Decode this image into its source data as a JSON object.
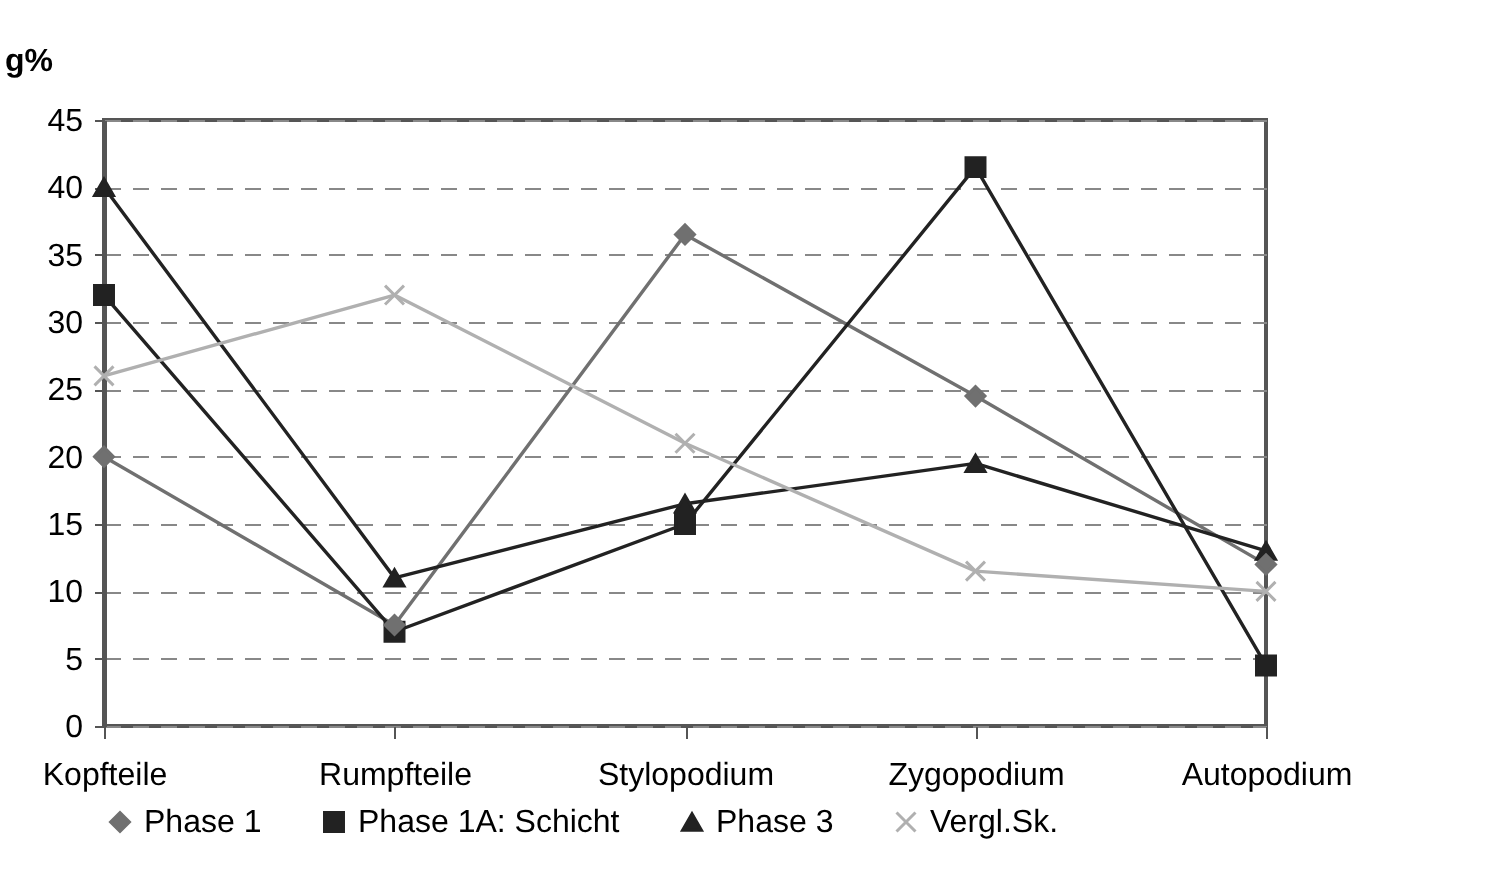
{
  "chart_data": {
    "type": "line",
    "ylabel": "g%",
    "categories": [
      "Kopfteile",
      "Rumpfteile",
      "Stylopodium",
      "Zygopodium",
      "Autopodium"
    ],
    "series": [
      {
        "name": "Phase 1",
        "color": "#707070",
        "marker": "diamond",
        "values": [
          20,
          7.5,
          36.5,
          24.5,
          12
        ]
      },
      {
        "name": "Phase 1A: Schicht",
        "color": "#222222",
        "marker": "square",
        "values": [
          32,
          7,
          15,
          41.5,
          4.5
        ]
      },
      {
        "name": "Phase 3",
        "color": "#222222",
        "marker": "triangle",
        "values": [
          40,
          11,
          16.5,
          19.5,
          13
        ]
      },
      {
        "name": "Vergl.Sk.",
        "color": "#b0b0b0",
        "marker": "cross",
        "values": [
          26,
          32,
          21,
          11.5,
          10
        ]
      }
    ],
    "ylim": [
      0,
      45
    ],
    "yticks": [
      0,
      5,
      10,
      15,
      20,
      25,
      30,
      35,
      40,
      45
    ],
    "grid": "y",
    "legend": "bottom",
    "line_style": "solid"
  }
}
